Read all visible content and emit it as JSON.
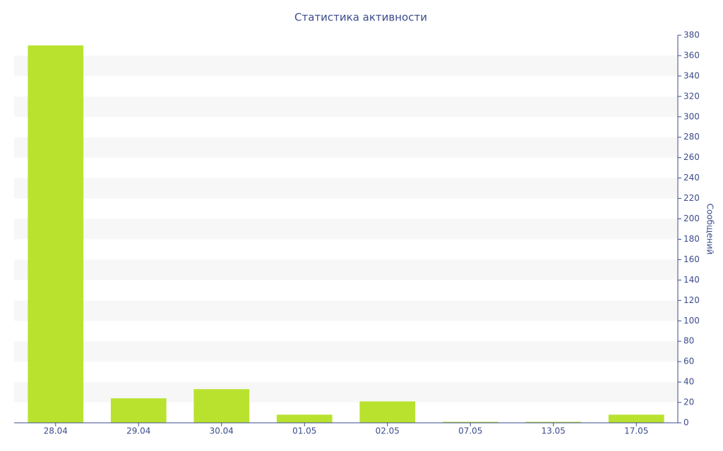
{
  "chart_data": {
    "type": "bar",
    "title": "Статистика активности",
    "y_axis_label": "Сообщений",
    "categories": [
      "28.04",
      "29.04",
      "30.04",
      "01.05",
      "02.05",
      "07.05",
      "13.05",
      "17.05"
    ],
    "values": [
      370,
      24,
      33,
      8,
      21,
      1,
      1,
      8
    ],
    "color": "#b9e22e",
    "ylim": [
      0,
      380
    ],
    "yticks": [
      0,
      20,
      40,
      60,
      80,
      100,
      120,
      140,
      160,
      180,
      200,
      220,
      240,
      260,
      280,
      300,
      320,
      340,
      360,
      380
    ],
    "grid": "bands",
    "y_axis_side": "right"
  }
}
